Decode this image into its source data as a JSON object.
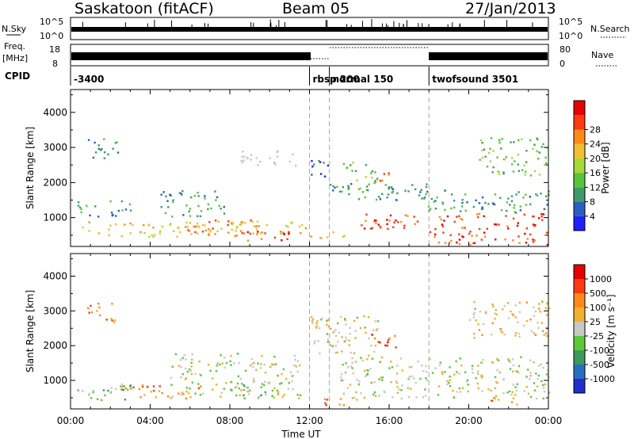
{
  "header": {
    "station": "Saskatoon (fitACF)",
    "beam": "Beam 05",
    "date": "27/Jan/2013"
  },
  "noise_panel": {
    "left_label": "N.Sky",
    "right_label": "N.Search",
    "left_ticks": [
      "10^5",
      "10^0"
    ],
    "right_ticks": [
      "10^5",
      "10^0"
    ]
  },
  "freq_panel": {
    "left_label_top": "Freq.",
    "left_label_bottom": "[MHz]",
    "right_label": "Nave",
    "left_ticks": [
      "18",
      "8"
    ],
    "right_ticks": [
      "80",
      "0"
    ]
  },
  "cpid": {
    "label": "CPID",
    "entries": [
      {
        "text": "-3400",
        "start_h": 0.0
      },
      {
        "text": "rbsp 200",
        "start_h": 12.0
      },
      {
        "text": "normal 150",
        "start_h": 13.0
      },
      {
        "text": "twofsound 3501",
        "start_h": 18.0
      }
    ]
  },
  "colors": {
    "dashed_lines": "#a8a8a8",
    "gs_gray": "#c8c8c4"
  },
  "chart_data": [
    {
      "type": "heatmap",
      "panel": "power",
      "ylabel": "Slant Range [km]",
      "ylim": [
        180,
        4650
      ],
      "xlim": [
        0,
        24
      ],
      "yticks": [
        "1000",
        "2000",
        "3000",
        "4000"
      ],
      "colorbar": {
        "label": "Power [dB]",
        "ticks": [
          "4",
          "8",
          "12",
          "16",
          "20",
          "24",
          "28"
        ],
        "levels": [
          "#2020ff",
          "#2c5ebe",
          "#3f9a6a",
          "#58c43c",
          "#a8d83a",
          "#f0c030",
          "#ff8a1a",
          "#ff3a10",
          "#e60000"
        ]
      },
      "regions": [
        {
          "t0": 0.4,
          "t1": 11.8,
          "r0": 480,
          "r1": 900,
          "level": 5
        },
        {
          "t0": 0.2,
          "t1": 3.0,
          "r0": 1050,
          "r1": 1500,
          "level": 2
        },
        {
          "t0": 0.8,
          "t1": 2.4,
          "r0": 2700,
          "r1": 3300,
          "level": 2
        },
        {
          "t0": 4.5,
          "t1": 7.8,
          "r0": 1050,
          "r1": 1800,
          "level": 2
        },
        {
          "t0": 5.0,
          "t1": 9.5,
          "r0": 500,
          "r1": 950,
          "level": 6
        },
        {
          "t0": 8.2,
          "t1": 11.0,
          "r0": 350,
          "r1": 650,
          "level": 7
        },
        {
          "t0": 8.5,
          "t1": 11.6,
          "r0": 2500,
          "r1": 2950,
          "level": 0,
          "gray": true
        },
        {
          "t0": 12.0,
          "t1": 13.0,
          "r0": 2200,
          "r1": 2800,
          "level": 1
        },
        {
          "t0": 12.0,
          "t1": 13.8,
          "r0": 420,
          "r1": 650,
          "level": 5
        },
        {
          "t0": 13.6,
          "t1": 15.4,
          "r0": 1800,
          "r1": 2650,
          "level": 3
        },
        {
          "t0": 15.0,
          "t1": 16.2,
          "r0": 2000,
          "r1": 2300,
          "level": 6
        },
        {
          "t0": 13.0,
          "t1": 18.0,
          "r0": 1500,
          "r1": 2000,
          "level": 2
        },
        {
          "t0": 14.5,
          "t1": 24.0,
          "r0": 700,
          "r1": 1150,
          "level": 7
        },
        {
          "t0": 17.5,
          "t1": 24.0,
          "r0": 1150,
          "r1": 1800,
          "level": 2
        },
        {
          "t0": 18.0,
          "t1": 24.0,
          "r0": 250,
          "r1": 650,
          "level": 7
        },
        {
          "t0": 20.5,
          "t1": 24.0,
          "r0": 2200,
          "r1": 3300,
          "level": 3
        }
      ]
    },
    {
      "type": "heatmap",
      "panel": "velocity",
      "ylabel": "Slant Range [km]",
      "xlabel": "Time UT",
      "ylim": [
        180,
        4650
      ],
      "xlim": [
        0,
        24
      ],
      "yticks": [
        "1000",
        "2000",
        "3000",
        "4000"
      ],
      "xticks": [
        "00:00",
        "04:00",
        "08:00",
        "12:00",
        "16:00",
        "20:00",
        "00:00"
      ],
      "colorbar": {
        "label": "Velocity [m s⁻¹]",
        "ticks": [
          "1000",
          "500",
          "100",
          "25",
          "-25",
          "-100",
          "-500",
          "-1000"
        ],
        "levels": [
          "#2030c8",
          "#2a6ec0",
          "#3c9a5a",
          "#5cc83a",
          "#c8c8c4",
          "#f0b030",
          "#ff8a1a",
          "#ff3a10",
          "#e60000"
        ]
      },
      "regions": [
        {
          "t0": 0.3,
          "t1": 3.2,
          "r0": 450,
          "r1": 950,
          "level": 3
        },
        {
          "t0": 2.5,
          "t1": 6.5,
          "r0": 500,
          "r1": 900,
          "level": 6
        },
        {
          "t0": 0.8,
          "t1": 2.2,
          "r0": 2700,
          "r1": 3300,
          "level": 6
        },
        {
          "t0": 5.0,
          "t1": 11.5,
          "r0": 500,
          "r1": 1800,
          "level": 4
        },
        {
          "t0": 7.5,
          "t1": 9.8,
          "r0": 500,
          "r1": 900,
          "level": 3
        },
        {
          "t0": 12.0,
          "t1": 15.5,
          "r0": 1700,
          "r1": 2900,
          "level": 4
        },
        {
          "t0": 15.0,
          "t1": 16.3,
          "r0": 1950,
          "r1": 2450,
          "level": 7
        },
        {
          "t0": 13.5,
          "t1": 24.0,
          "r0": 500,
          "r1": 1700,
          "level": 4
        },
        {
          "t0": 12.0,
          "t1": 14.5,
          "r0": 300,
          "r1": 500,
          "level": 6
        },
        {
          "t0": 21.0,
          "t1": 22.5,
          "r0": 300,
          "r1": 600,
          "level": 6
        },
        {
          "t0": 20.0,
          "t1": 24.0,
          "r0": 2200,
          "r1": 3300,
          "level": 5
        }
      ]
    }
  ]
}
